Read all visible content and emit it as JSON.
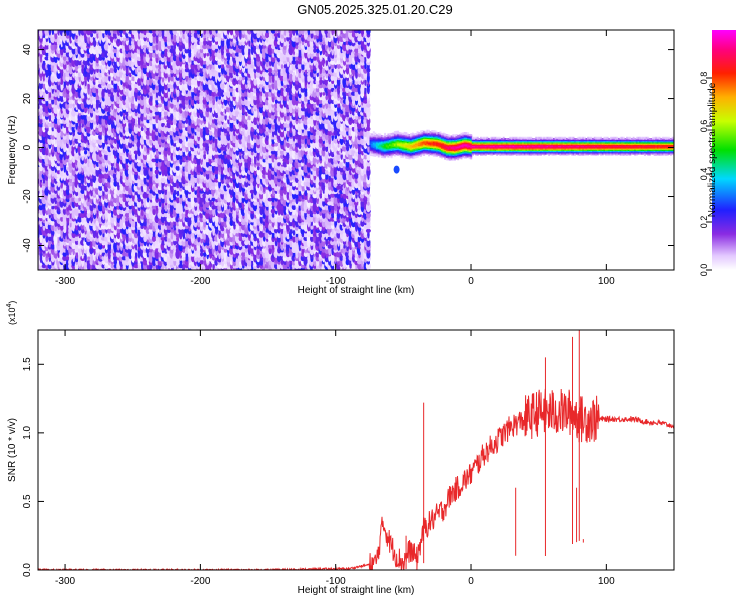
{
  "title": "GN05.2025.325.01.20.C29",
  "chart_data": [
    {
      "type": "heatmap",
      "xlabel": "Height of straight line (km)",
      "ylabel": "Frequency (Hz)",
      "xlim": [
        -320,
        150
      ],
      "ylim": [
        -50,
        48
      ],
      "xticks": [
        -300,
        -200,
        -100,
        0,
        100
      ],
      "xtick_labels": [
        "-300",
        "-200",
        "-100",
        "0",
        "100"
      ],
      "yticks": [
        -40,
        -20,
        0,
        20,
        40
      ],
      "ytick_labels": [
        "-40",
        "-20",
        "0",
        "20",
        "40"
      ],
      "grid": false,
      "colorbar": {
        "label": "Normalized spectral amplitude",
        "range": [
          0,
          1
        ],
        "ticks": [
          0,
          0.2,
          0.4,
          0.6,
          0.8
        ],
        "tick_labels": [
          "0.0",
          "0.2",
          "0.4",
          "0.6",
          "0.8"
        ],
        "colormap": "rainbow (white-violet-blue-cyan-green-yellow-red-magenta)"
      },
      "description_values": {
        "noise_region_x": [
          -320,
          -75
        ],
        "noise_amplitude": [
          0.05,
          0.25
        ],
        "signal_ridge": {
          "x": [
            -75,
            -65,
            -55,
            -45,
            -35,
            -25,
            -18,
            -12,
            -5,
            0,
            50,
            100,
            150
          ],
          "frequency": [
            1.5,
            0.5,
            1.5,
            0.5,
            2.0,
            1.5,
            0.0,
            0.0,
            1.0,
            0.5,
            0.5,
            0.5,
            0.5
          ],
          "peak_amplitude": [
            0.3,
            0.5,
            0.6,
            0.7,
            0.8,
            0.85,
            0.9,
            0.95,
            0.95,
            0.95,
            0.95,
            0.9,
            0.85
          ]
        }
      }
    },
    {
      "type": "line",
      "xlabel": "Height of straight line (km)",
      "ylabel": "SNR (10 * v/v)",
      "y_multiplier_label": "(x10",
      "y_multiplier_exp": "4",
      "y_multiplier_close": ")",
      "xlim": [
        -320,
        150
      ],
      "ylim": [
        0,
        1.75
      ],
      "xticks": [
        -300,
        -200,
        -100,
        0,
        100
      ],
      "xtick_labels": [
        "-300",
        "-200",
        "-100",
        "0",
        "100"
      ],
      "yticks": [
        0,
        0.5,
        1.0,
        1.5
      ],
      "ytick_labels": [
        "0.0",
        "0.5",
        "1.0",
        "1.5"
      ],
      "grid": false,
      "series": [
        {
          "color": "#e8282a",
          "x": [
            -320,
            -250,
            -150,
            -90,
            -70,
            -65,
            -60,
            -55,
            -50,
            -45,
            -40,
            -35,
            -30,
            -25,
            -20,
            -15,
            -10,
            -5,
            0,
            10,
            20,
            30,
            40,
            50,
            60,
            70,
            75,
            80,
            85,
            90,
            100,
            110,
            120,
            130,
            140,
            150
          ],
          "y": [
            0.0,
            0.0,
            0.0,
            0.01,
            0.05,
            0.35,
            0.2,
            0.1,
            0.05,
            0.15,
            0.08,
            0.3,
            0.35,
            0.4,
            0.45,
            0.55,
            0.6,
            0.65,
            0.7,
            0.85,
            0.95,
            1.05,
            1.1,
            1.15,
            1.15,
            1.15,
            1.15,
            1.1,
            1.1,
            1.1,
            1.1,
            1.1,
            1.1,
            1.08,
            1.07,
            1.05
          ]
        }
      ],
      "spikes": [
        {
          "x": -35,
          "y": 1.22
        },
        {
          "x": -48,
          "y": 0.25
        },
        {
          "x": 33,
          "y": 0.6
        },
        {
          "x": 55,
          "y": 1.55
        },
        {
          "x": 75,
          "y": 1.7
        },
        {
          "x": 78,
          "y": 0.6
        },
        {
          "x": 80,
          "y": 1.75
        },
        {
          "x": 83,
          "y": 0.2
        }
      ]
    }
  ]
}
